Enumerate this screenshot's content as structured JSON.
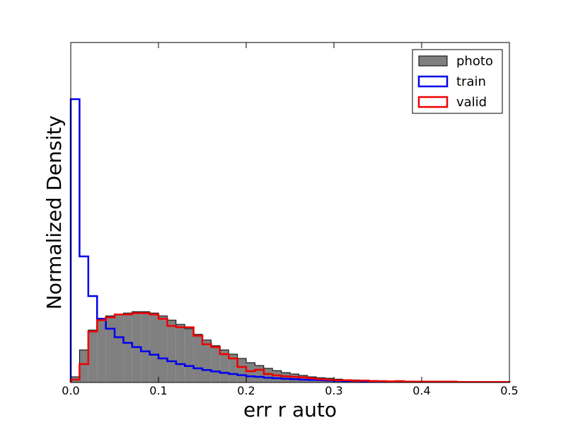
{
  "chart_data": {
    "type": "histogram",
    "xlabel": "err r auto",
    "ylabel": "Normalized Density",
    "xlim": [
      0,
      0.5
    ],
    "ylim": [
      0,
      1.2
    ],
    "x_ticks": [
      "0.0",
      "0.1",
      "0.2",
      "0.3",
      "0.4",
      "0.5"
    ],
    "y_ticks_shown": false,
    "grid": false,
    "legend_position": "top-right",
    "bin_width": 0.01,
    "bin_start": 0.0,
    "series": [
      {
        "name": "photo",
        "style": "filled",
        "color": "#808080",
        "edge": "#000000",
        "values": [
          0.02,
          0.115,
          0.185,
          0.22,
          0.235,
          0.24,
          0.245,
          0.25,
          0.25,
          0.245,
          0.235,
          0.22,
          0.205,
          0.19,
          0.17,
          0.15,
          0.13,
          0.115,
          0.1,
          0.085,
          0.07,
          0.06,
          0.05,
          0.042,
          0.035,
          0.03,
          0.025,
          0.02,
          0.017,
          0.015,
          0.012,
          0.01,
          0.009,
          0.008,
          0.007,
          0.006,
          0.005,
          0.004,
          0.004,
          0.003,
          0.003,
          0.002,
          0.002,
          0.002,
          0.002,
          0.001,
          0.001,
          0.001,
          0.001,
          0.001
        ]
      },
      {
        "name": "train",
        "style": "step",
        "color": "#0000ee",
        "values": [
          1.0,
          0.445,
          0.305,
          0.225,
          0.19,
          0.16,
          0.14,
          0.125,
          0.11,
          0.098,
          0.085,
          0.075,
          0.065,
          0.058,
          0.05,
          0.044,
          0.039,
          0.034,
          0.03,
          0.026,
          0.022,
          0.02,
          0.017,
          0.015,
          0.013,
          0.012,
          0.01,
          0.009,
          0.008,
          0.007,
          0.006,
          0.005,
          0.005,
          0.004,
          0.004,
          0.003,
          0.003,
          0.003,
          0.002,
          0.002,
          0.002,
          0.002,
          0.002,
          0.002,
          0.002,
          0.002,
          0.002,
          0.002,
          0.002,
          0.002
        ]
      },
      {
        "name": "valid",
        "style": "step",
        "color": "#ee0000",
        "values": [
          0.01,
          0.065,
          0.18,
          0.22,
          0.23,
          0.24,
          0.24,
          0.245,
          0.245,
          0.24,
          0.225,
          0.2,
          0.195,
          0.195,
          0.165,
          0.135,
          0.125,
          0.1,
          0.085,
          0.055,
          0.04,
          0.045,
          0.03,
          0.025,
          0.022,
          0.02,
          0.018,
          0.015,
          0.012,
          0.01,
          0.008,
          0.008,
          0.006,
          0.007,
          0.005,
          0.005,
          0.004,
          0.005,
          0.003,
          0.003,
          0.003,
          0.003,
          0.003,
          0.003,
          0.002,
          0.002,
          0.002,
          0.002,
          0.002,
          0.002
        ]
      }
    ]
  }
}
